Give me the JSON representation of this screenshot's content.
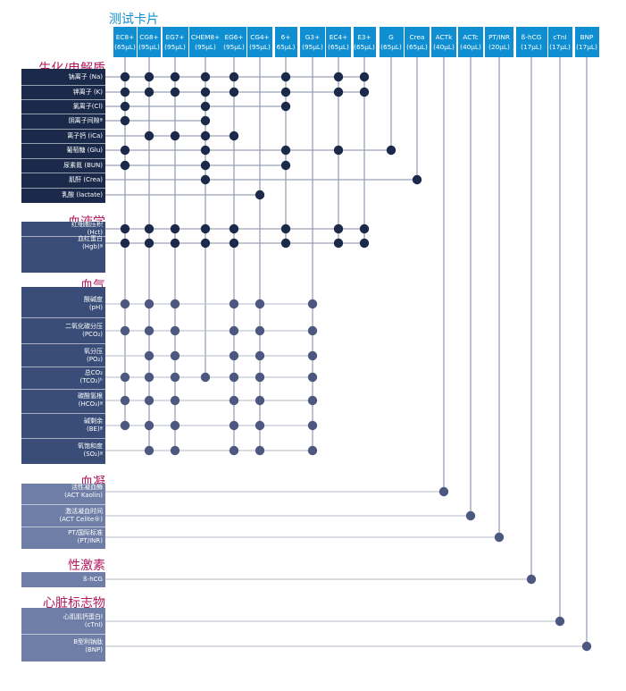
{
  "title": "测试卡片",
  "colors": {
    "header": "#0f8fd2",
    "title": "#0f8fd2",
    "section": "#b3195f",
    "dark_block": "#1b2a4a",
    "mid_block": "#3a4d78",
    "light_block": "#6e7ea6"
  },
  "cartridges": [
    {
      "name": "EC8+",
      "vol": "(65μL)"
    },
    {
      "name": "CG8+",
      "vol": "(95μL)"
    },
    {
      "name": "EG7+",
      "vol": "(95μL)"
    },
    {
      "name": "CHEM8+",
      "vol": "(95μL)"
    },
    {
      "name": "EG6+",
      "vol": "(95μL)"
    },
    {
      "name": "CG4+",
      "vol": "(95μL)"
    },
    {
      "name": "6+",
      "vol": "65μL)"
    },
    {
      "name": "G3+",
      "vol": "(95μL)"
    },
    {
      "name": "EC4+",
      "vol": "(65μL)"
    },
    {
      "name": "E3+",
      "vol": "(65μL)"
    },
    {
      "name": "G",
      "vol": "(65μL)"
    },
    {
      "name": "Crea",
      "vol": "(65μL)"
    },
    {
      "name": "ACTk",
      "vol": "(40μL)"
    },
    {
      "name": "ACTc",
      "vol": "(40μL)"
    },
    {
      "name": "PT/INR",
      "vol": "(20μL)"
    },
    {
      "name": "ß-hCG",
      "vol": "(17μL)"
    },
    {
      "name": "cTnI",
      "vol": "(17μL)"
    },
    {
      "name": "BNP",
      "vol": "(17μL)"
    }
  ],
  "sections": [
    {
      "label": "生化/电解质"
    },
    {
      "label": "血液学"
    },
    {
      "label": "血气"
    },
    {
      "label": "血凝"
    },
    {
      "label": "性激素"
    },
    {
      "label": "心脏标志物"
    }
  ],
  "rows": [
    {
      "lines": [
        "钠离子 (Na)"
      ],
      "section": 0,
      "cols": [
        0,
        1,
        2,
        3,
        4,
        6,
        8,
        9
      ]
    },
    {
      "lines": [
        "钾离子 (K)"
      ],
      "section": 0,
      "cols": [
        0,
        1,
        2,
        3,
        4,
        6,
        8,
        9
      ]
    },
    {
      "lines": [
        "氯离子(Cl)"
      ],
      "section": 0,
      "cols": [
        0,
        3,
        6
      ]
    },
    {
      "lines": [
        "阴离子间隙ª"
      ],
      "section": 0,
      "cols": [
        0,
        3
      ]
    },
    {
      "lines": [
        "离子钙 (iCa)"
      ],
      "section": 0,
      "cols": [
        1,
        2,
        3,
        4
      ]
    },
    {
      "lines": [
        "葡萄糖 (Glu)"
      ],
      "section": 0,
      "cols": [
        0,
        3,
        6,
        8,
        10
      ]
    },
    {
      "lines": [
        "尿素氮 (BUN)"
      ],
      "section": 0,
      "cols": [
        0,
        3,
        6
      ]
    },
    {
      "lines": [
        "肌酐 (Crea)"
      ],
      "section": 0,
      "cols": [
        3,
        11
      ]
    },
    {
      "lines": [
        "乳酸 (lactate)"
      ],
      "section": 0,
      "cols": [
        5
      ]
    },
    {
      "lines": [
        "红细胞压积",
        "(Hct)"
      ],
      "section": 1,
      "cols": [
        0,
        1,
        2,
        3,
        4,
        6,
        8,
        9
      ]
    },
    {
      "lines": [
        "血红蛋白",
        "(Hgb)ª"
      ],
      "section": 1,
      "cols": [
        0,
        1,
        2,
        3,
        4,
        6,
        8,
        9
      ]
    },
    {
      "lines": [
        "酸碱度",
        "(pH)"
      ],
      "section": 2,
      "cols": [
        0,
        1,
        2,
        4,
        5,
        7
      ]
    },
    {
      "lines": [
        "二氧化碳分压",
        "(PCO₂)"
      ],
      "section": 2,
      "cols": [
        0,
        1,
        2,
        4,
        5,
        7
      ]
    },
    {
      "lines": [
        "氧分压",
        "(PO₂)"
      ],
      "section": 2,
      "cols": [
        1,
        2,
        4,
        5,
        7
      ]
    },
    {
      "lines": [
        "总CO₂",
        "(TCO₂)ᵇ"
      ],
      "section": 2,
      "cols": [
        0,
        1,
        2,
        3,
        4,
        5,
        7
      ]
    },
    {
      "lines": [
        "碳酸氢根",
        "(HCO₃)ª"
      ],
      "section": 2,
      "cols": [
        0,
        1,
        2,
        4,
        5,
        7
      ]
    },
    {
      "lines": [
        "碱剩余",
        "(BE)ª"
      ],
      "section": 2,
      "cols": [
        0,
        1,
        2,
        4,
        5,
        7
      ]
    },
    {
      "lines": [
        "氧饱和度",
        "(SO₂)ª"
      ],
      "section": 2,
      "cols": [
        1,
        2,
        4,
        5,
        7
      ]
    },
    {
      "lines": [
        "活性凝血酶",
        "(ACT Kaolin)"
      ],
      "section": 3,
      "cols": [
        12
      ]
    },
    {
      "lines": [
        "激活凝血时间",
        "(ACT Celite®)"
      ],
      "section": 3,
      "cols": [
        13
      ]
    },
    {
      "lines": [
        "PT/国际标准",
        "(PT/INR)"
      ],
      "section": 3,
      "cols": [
        14
      ]
    },
    {
      "lines": [
        "ß-hCG"
      ],
      "section": 4,
      "cols": [
        15
      ]
    },
    {
      "lines": [
        "心肌肌钙蛋白I",
        "(cTnI)"
      ],
      "section": 5,
      "cols": [
        16
      ]
    },
    {
      "lines": [
        "B型利钠肽",
        "(BNP)"
      ],
      "section": 5,
      "cols": [
        17
      ]
    }
  ]
}
